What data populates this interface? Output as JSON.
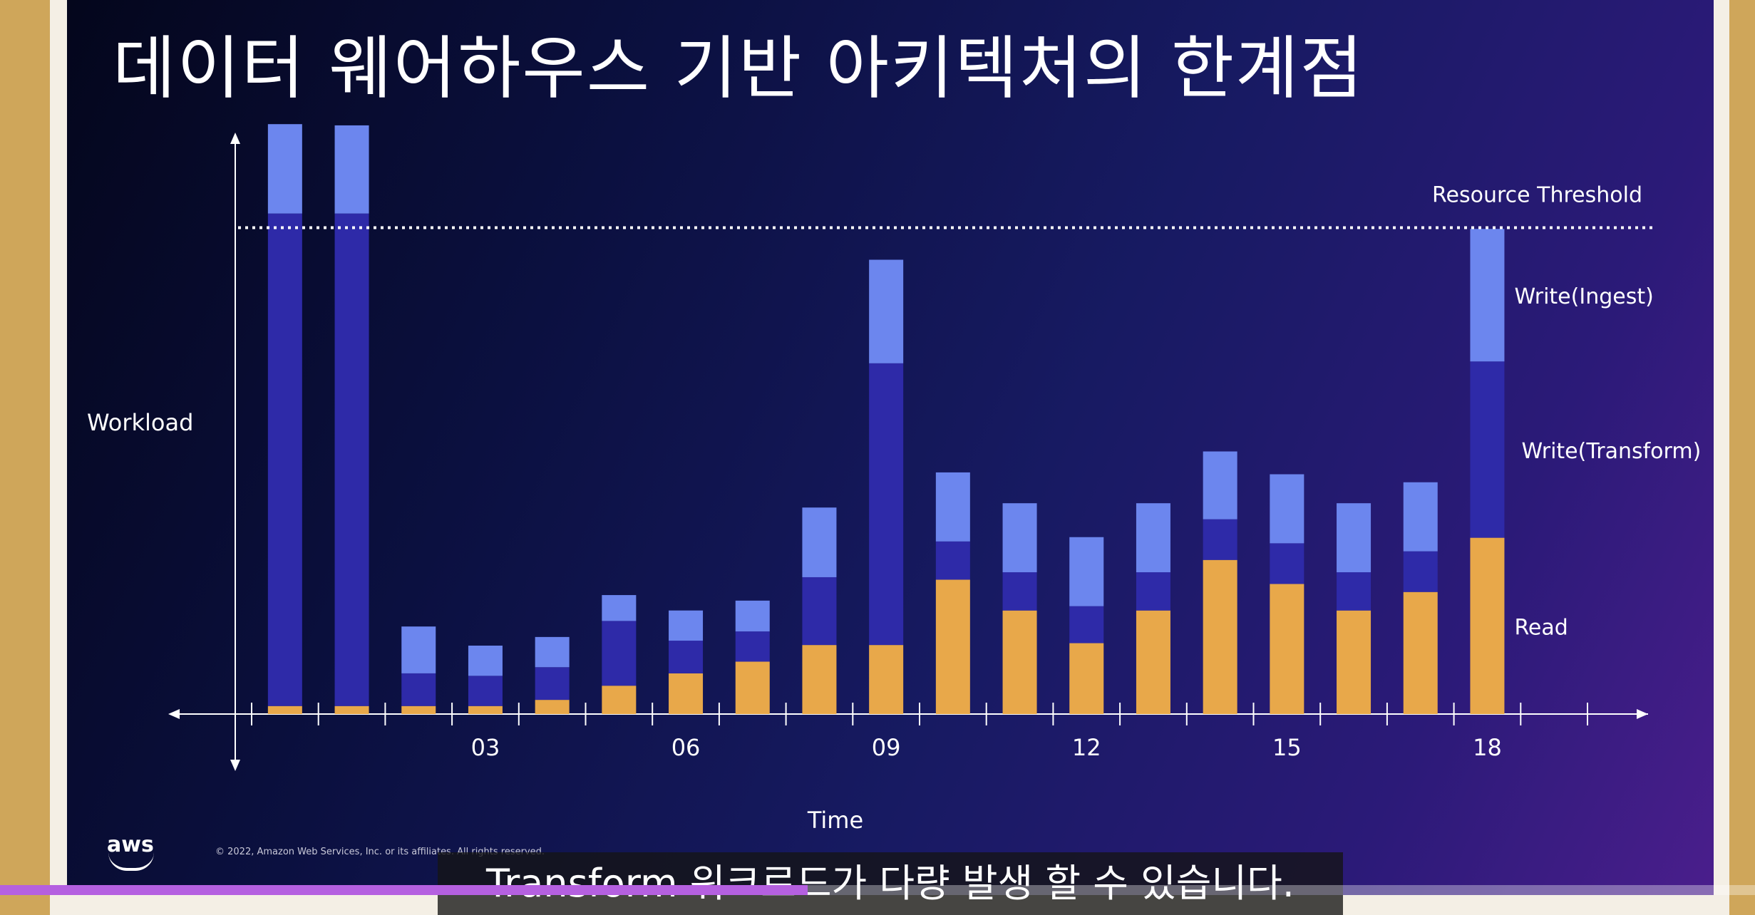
{
  "slide": {
    "title": "데이터 웨어하우스 기반 아키텍처의 한계점",
    "brand": "aws",
    "copyright": "© 2022, Amazon Web Services, Inc. or its affiliates. All rights reserved."
  },
  "subtitle_caption": "Transform 워크로드가 다량 발생 할 수 있습니다.",
  "player": {
    "progress_fraction": 0.46,
    "progress_color": "#b560e0"
  },
  "colors": {
    "read": "#e8a84a",
    "write_transform": "#2e2aa8",
    "write_ingest": "#6c86ee",
    "axis": "#ffffff",
    "text": "#ffffff"
  },
  "chart_data": {
    "type": "bar",
    "stacked": true,
    "xlabel": "Time",
    "ylabel": "Workload",
    "x_tick_labels": [
      "03",
      "06",
      "09",
      "12",
      "15",
      "18"
    ],
    "x_tick_positions": [
      3,
      6,
      9,
      12,
      15,
      18
    ],
    "x": [
      0,
      1,
      2,
      3,
      4,
      5,
      6,
      7,
      8,
      9,
      10,
      11,
      12,
      13,
      14,
      15,
      16,
      17,
      18
    ],
    "ylim": [
      0,
      100
    ],
    "threshold": {
      "label": "Resource Threshold",
      "value": 78.9
    },
    "series": [
      {
        "name": "Read",
        "values": [
          1.3,
          1.3,
          1.3,
          1.3,
          2.3,
          4.6,
          6.6,
          8.5,
          11.2,
          11.2,
          21.8,
          16.8,
          11.5,
          16.8,
          25.0,
          21.1,
          16.8,
          19.8,
          28.6
        ]
      },
      {
        "name": "Write(Transform)",
        "values": [
          79.9,
          79.9,
          5.3,
          4.9,
          5.3,
          10.5,
          5.3,
          4.9,
          11.0,
          45.7,
          6.2,
          6.2,
          6.0,
          6.2,
          6.6,
          6.6,
          6.2,
          6.6,
          28.6
        ]
      },
      {
        "name": "Write(Ingest)",
        "values": [
          14.5,
          14.3,
          7.6,
          4.9,
          4.9,
          4.2,
          4.9,
          5.0,
          11.3,
          16.8,
          11.2,
          11.2,
          11.2,
          11.2,
          11.0,
          11.2,
          11.2,
          11.2,
          21.5
        ]
      }
    ],
    "grid": false,
    "legend": "right (inline labels)"
  }
}
